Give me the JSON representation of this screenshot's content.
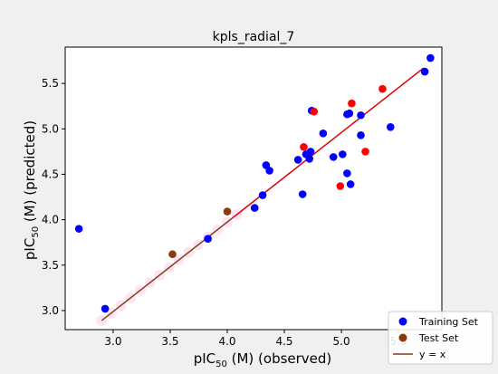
{
  "chart_data": {
    "type": "scatter",
    "title": "kpls_radial_7",
    "xlabel_main": "pIC",
    "xlabel_sub": "50",
    "xlabel_rest": " (M) (observed)",
    "ylabel_main": "pIC",
    "ylabel_sub": "50",
    "ylabel_rest": " (M) (predicted)",
    "xlim": [
      2.58,
      5.88
    ],
    "ylim": [
      2.79,
      5.9
    ],
    "xticks": [
      "3.0",
      "3.5",
      "4.0",
      "4.5",
      "5.0",
      "5.5"
    ],
    "yticks": [
      "3.0",
      "3.5",
      "4.0",
      "4.5",
      "5.0",
      "5.5"
    ],
    "xtick_values": [
      3.0,
      3.5,
      4.0,
      4.5,
      5.0,
      5.5
    ],
    "ytick_values": [
      3.0,
      3.5,
      4.0,
      4.5,
      5.0,
      5.5
    ],
    "colors": {
      "training": "#0000ff",
      "test_red": "#ff0000",
      "test_brown": "#8b3a0f",
      "identity_line_main": "#e00000",
      "identity_line_low": "#7a4410",
      "highlight": "#ffc0e8"
    },
    "series": [
      {
        "name": "Training Set",
        "color": "#0000ff",
        "points": [
          [
            2.7,
            3.9
          ],
          [
            2.93,
            3.02
          ],
          [
            3.83,
            3.79
          ],
          [
            4.24,
            4.13
          ],
          [
            4.31,
            4.27
          ],
          [
            4.34,
            4.6
          ],
          [
            4.37,
            4.54
          ],
          [
            4.62,
            4.66
          ],
          [
            4.66,
            4.28
          ],
          [
            4.69,
            4.72
          ],
          [
            4.72,
            4.67
          ],
          [
            4.73,
            4.75
          ],
          [
            4.74,
            5.2
          ],
          [
            4.84,
            4.95
          ],
          [
            4.93,
            4.69
          ],
          [
            5.01,
            4.72
          ],
          [
            5.05,
            4.51
          ],
          [
            5.05,
            5.16
          ],
          [
            5.07,
            5.17
          ],
          [
            5.08,
            4.39
          ],
          [
            5.17,
            4.93
          ],
          [
            5.17,
            5.15
          ],
          [
            5.43,
            5.02
          ],
          [
            5.73,
            5.63
          ],
          [
            5.78,
            5.78
          ]
        ]
      },
      {
        "name": "Test Set",
        "color": "#ff0000",
        "points": [
          [
            4.0,
            4.09
          ],
          [
            3.52,
            3.62
          ],
          [
            4.67,
            4.8
          ],
          [
            4.76,
            5.19
          ],
          [
            4.99,
            4.37
          ],
          [
            5.09,
            5.28
          ],
          [
            5.21,
            4.75
          ],
          [
            5.36,
            5.44
          ]
        ]
      }
    ],
    "test_low_points_brown": [
      0,
      1
    ],
    "identity_line": {
      "name": "y = x",
      "from": [
        2.9,
        2.89
      ],
      "to": [
        5.72,
        5.67
      ],
      "color_change_at": 4.05
    },
    "legend": {
      "placement": "lower-right",
      "entries": [
        {
          "label": "Training Set",
          "kind": "marker",
          "color": "#0000ff"
        },
        {
          "label": "Test Set",
          "kind": "marker",
          "color": "#8b3a0f"
        },
        {
          "label": "y = x",
          "kind": "line",
          "color": "#8b3a0f"
        }
      ]
    },
    "grid": false
  }
}
